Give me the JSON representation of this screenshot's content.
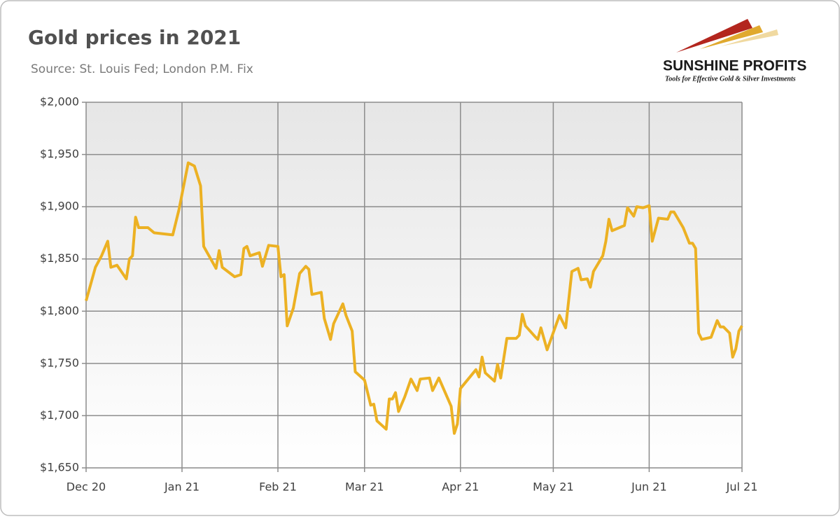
{
  "chart_data": {
    "type": "line",
    "title": "Gold prices in 2021",
    "subtitle": "Source: St. Louis Fed; London P.M. Fix",
    "x": [
      0,
      3,
      5,
      7,
      8,
      10,
      13,
      14,
      15,
      16,
      17,
      20,
      22,
      28,
      30,
      33,
      35,
      37,
      38,
      42,
      43,
      44,
      48,
      50,
      51,
      52,
      53,
      56,
      57,
      59,
      62,
      63,
      64,
      65,
      67,
      69,
      71,
      72,
      73,
      76,
      77,
      79,
      80,
      83,
      84,
      86,
      87,
      90,
      92,
      93,
      94,
      97,
      98,
      99,
      100,
      101,
      103,
      105,
      107,
      108,
      111,
      112,
      114,
      118,
      119,
      120,
      121,
      126,
      127,
      128,
      129,
      132,
      133,
      134,
      136,
      139,
      140,
      141,
      142,
      145,
      146,
      147,
      149,
      153,
      155,
      157,
      159,
      160,
      162,
      163,
      164,
      167,
      168,
      169,
      170,
      174,
      175,
      177,
      178,
      180,
      182,
      183,
      185,
      188,
      189,
      190,
      193,
      195,
      196,
      197,
      198,
      199,
      202,
      204,
      205,
      206,
      208,
      209,
      210,
      211,
      212
    ],
    "series": [
      {
        "name": "Gold price",
        "color": "#ecb123",
        "values": [
          1810,
          1842,
          1853,
          1867,
          1842,
          1844,
          1831,
          1850,
          1853,
          1890,
          1880,
          1880,
          1875,
          1873,
          1897,
          1942,
          1939,
          1920,
          1862,
          1841,
          1858,
          1842,
          1833,
          1835,
          1860,
          1862,
          1853,
          1856,
          1843,
          1863,
          1862,
          1833,
          1835,
          1786,
          1803,
          1836,
          1843,
          1840,
          1816,
          1818,
          1793,
          1773,
          1788,
          1807,
          1796,
          1781,
          1742,
          1734,
          1710,
          1711,
          1695,
          1687,
          1716,
          1716,
          1722,
          1704,
          1718,
          1735,
          1724,
          1735,
          1736,
          1724,
          1736,
          1709,
          1683,
          1692,
          1726,
          1744,
          1737,
          1756,
          1741,
          1733,
          1749,
          1736,
          1774,
          1774,
          1777,
          1797,
          1786,
          1776,
          1773,
          1784,
          1763,
          1796,
          1784,
          1838,
          1841,
          1830,
          1831,
          1823,
          1838,
          1853,
          1867,
          1888,
          1877,
          1882,
          1899,
          1891,
          1900,
          1899,
          1901,
          1867,
          1889,
          1888,
          1895,
          1895,
          1880,
          1865,
          1865,
          1860,
          1779,
          1773,
          1775,
          1791,
          1785,
          1785,
          1779,
          1756,
          1764,
          1781,
          1786
        ]
      }
    ],
    "xlim": [
      0,
      212
    ],
    "xticks": [
      {
        "value": 0,
        "label": "Dec 20"
      },
      {
        "value": 31,
        "label": "Jan 21"
      },
      {
        "value": 62,
        "label": "Feb 21"
      },
      {
        "value": 90,
        "label": "Mar 21"
      },
      {
        "value": 121,
        "label": "Apr 21"
      },
      {
        "value": 151,
        "label": "May 21"
      },
      {
        "value": 182,
        "label": "Jun 21"
      },
      {
        "value": 212,
        "label": "Jul 21"
      }
    ],
    "ylim": [
      1650,
      2000
    ],
    "yticks": [
      {
        "value": 1650,
        "label": "$1,650"
      },
      {
        "value": 1700,
        "label": "$1,700"
      },
      {
        "value": 1750,
        "label": "$1,750"
      },
      {
        "value": 1800,
        "label": "$1,800"
      },
      {
        "value": 1850,
        "label": "$1,850"
      },
      {
        "value": 1900,
        "label": "$1,900"
      },
      {
        "value": 1950,
        "label": "$1,950"
      },
      {
        "value": 2000,
        "label": "$2,000"
      }
    ],
    "grid": true
  },
  "logo": {
    "name": "SUNSHINE PROFITS",
    "tagline": "Tools for Effective Gold & Silver Investments"
  }
}
